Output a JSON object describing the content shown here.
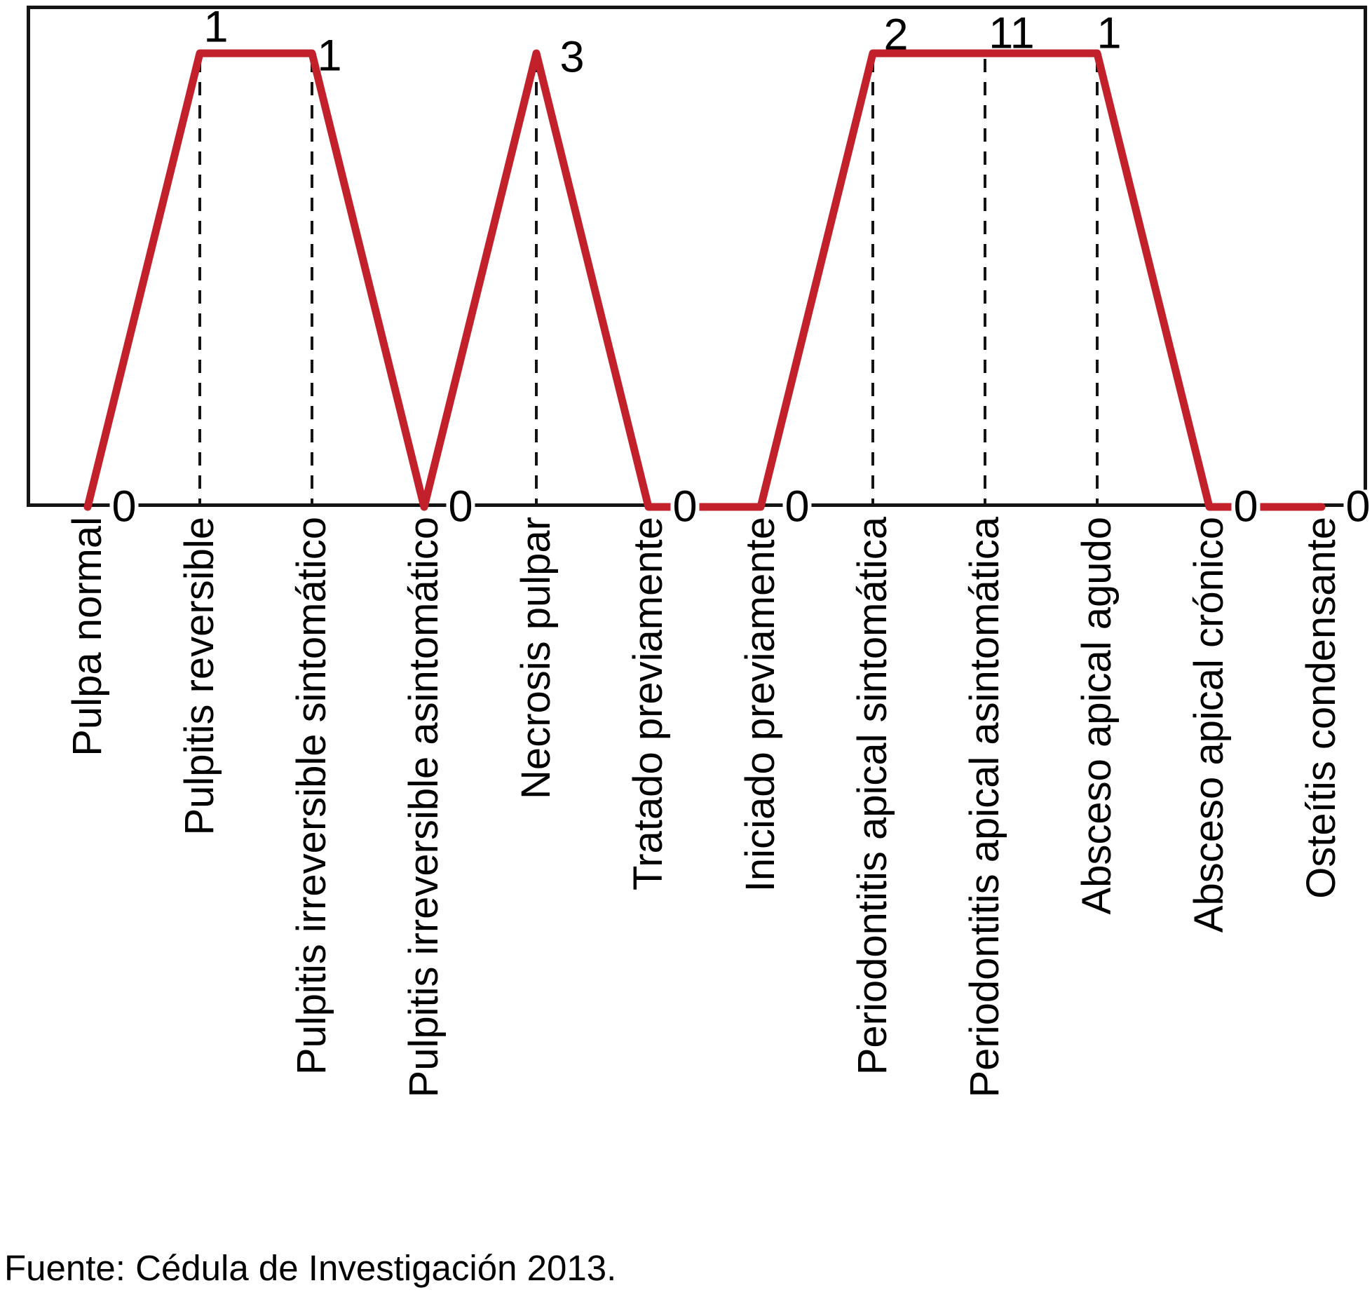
{
  "caption": "Fuente: Cédula de Investigación 2013.",
  "colors": {
    "line": "#c2212b",
    "axis": "#141414",
    "text": "#000000",
    "background": "#ffffff"
  },
  "chart_data": {
    "type": "line",
    "title": "",
    "xlabel": "",
    "ylabel": "",
    "legend_position": "none",
    "grid": false,
    "categories": [
      "Pulpa normal",
      "Pulpitis reversible",
      "Pulpitis irreversible sintomático",
      "Pulpitis irreversible asintomático",
      "Necrosis pulpar",
      "Tratado previamente",
      "Iniciado previamente",
      "Periodontitis apical sintomática",
      "Periodontitis apical asintomática",
      "Absceso apical agudo",
      "Absceso apical crónico",
      "Osteítis condensante"
    ],
    "values": [
      0,
      1,
      1,
      0,
      3,
      0,
      0,
      2,
      11,
      1,
      0,
      0
    ],
    "value_labels_shown": [
      "0",
      "1",
      "1",
      "0",
      "3",
      "0",
      "0",
      "2",
      "11",
      "1",
      "0",
      "0"
    ],
    "layout_note": "No y-axis scale shown; every non-zero point is drawn at one shared plateau height with a dashed drop-line to the x-axis; zero points lie on the x-axis."
  }
}
